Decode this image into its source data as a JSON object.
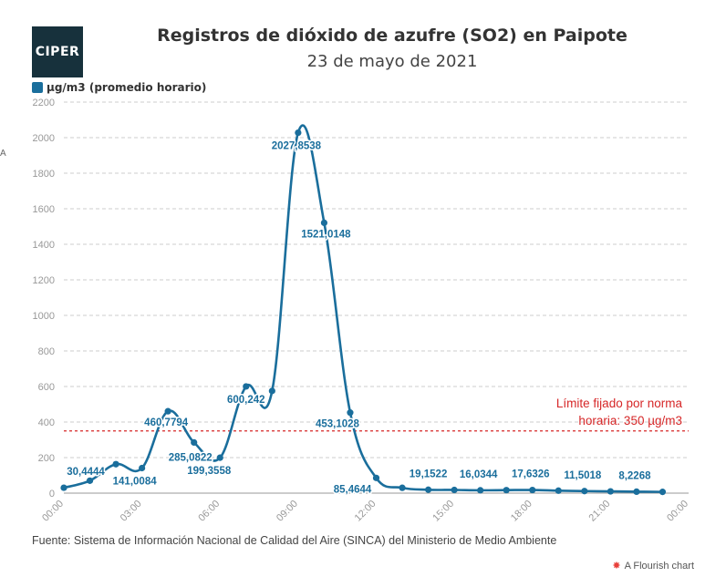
{
  "logo": {
    "text": "CIPER"
  },
  "header": {
    "title": "Registros de dióxido de azufre (SO2) en Paipote",
    "subtitle": "23 de mayo de 2021"
  },
  "edge_mark": "A",
  "source": "Fuente: Sistema de Información Nacional de Calidad del Aire (SINCA) del Ministerio de Medio Ambiente",
  "credit": "A Flourish chart",
  "colors": {
    "series": "#1a6e9c",
    "threshold": "#d62728",
    "grid": "#cccccc",
    "axis_text": "#999999"
  },
  "chart_data": {
    "type": "line",
    "title": "Registros de dióxido de azufre (SO2) en Paipote",
    "subtitle": "23 de mayo de 2021",
    "xlabel": "",
    "ylabel": "",
    "ylim": [
      0,
      2200
    ],
    "xlim": [
      0,
      24
    ],
    "grid": true,
    "legend_position": "top-left",
    "yticks": [
      "0",
      "200",
      "400",
      "600",
      "800",
      "1000",
      "1200",
      "1400",
      "1600",
      "1800",
      "2000",
      "2200"
    ],
    "xticks": [
      {
        "hour": 0,
        "label": "00:00"
      },
      {
        "hour": 3,
        "label": "03:00"
      },
      {
        "hour": 6,
        "label": "06:00"
      },
      {
        "hour": 9,
        "label": "09:00"
      },
      {
        "hour": 12,
        "label": "12:00"
      },
      {
        "hour": 15,
        "label": "15:00"
      },
      {
        "hour": 18,
        "label": "18:00"
      },
      {
        "hour": 21,
        "label": "21:00"
      },
      {
        "hour": 24,
        "label": "00:00"
      }
    ],
    "series": [
      {
        "name": "µg/m3 (promedio horario)",
        "points": [
          {
            "hour": 0,
            "value": 30.4444,
            "label": "30,4444"
          },
          {
            "hour": 1,
            "value": 70
          },
          {
            "hour": 2,
            "value": 163
          },
          {
            "hour": 3,
            "value": 141.0084,
            "label": "141,0084"
          },
          {
            "hour": 4,
            "value": 460.7794,
            "label": "460,7794"
          },
          {
            "hour": 5,
            "value": 285.0822,
            "label": "285,0822"
          },
          {
            "hour": 6,
            "value": 199.3558,
            "label": "199,3558"
          },
          {
            "hour": 7,
            "value": 600.242,
            "label": "600,242"
          },
          {
            "hour": 8,
            "value": 575
          },
          {
            "hour": 9,
            "value": 2027.8538,
            "label": "2027,8538"
          },
          {
            "hour": 10,
            "value": 1521.0148,
            "label": "1521,0148"
          },
          {
            "hour": 11,
            "value": 453.1028,
            "label": "453,1028"
          },
          {
            "hour": 12,
            "value": 85.4644,
            "label": "85,4644"
          },
          {
            "hour": 13,
            "value": 30
          },
          {
            "hour": 14,
            "value": 19.1522,
            "label": "19,1522"
          },
          {
            "hour": 15,
            "value": 18
          },
          {
            "hour": 16,
            "value": 16.0344,
            "label": "16,0344"
          },
          {
            "hour": 17,
            "value": 17
          },
          {
            "hour": 18,
            "value": 17.6326,
            "label": "17,6326"
          },
          {
            "hour": 19,
            "value": 14
          },
          {
            "hour": 20,
            "value": 11.5018,
            "label": "11,5018"
          },
          {
            "hour": 21,
            "value": 10
          },
          {
            "hour": 22,
            "value": 8.2268,
            "label": "8,2268"
          },
          {
            "hour": 23,
            "value": 7
          }
        ]
      }
    ],
    "threshold": {
      "value": 350,
      "label_lines": [
        "Límite fijado por norma",
        "horaria: 350 µg/m3"
      ]
    }
  }
}
